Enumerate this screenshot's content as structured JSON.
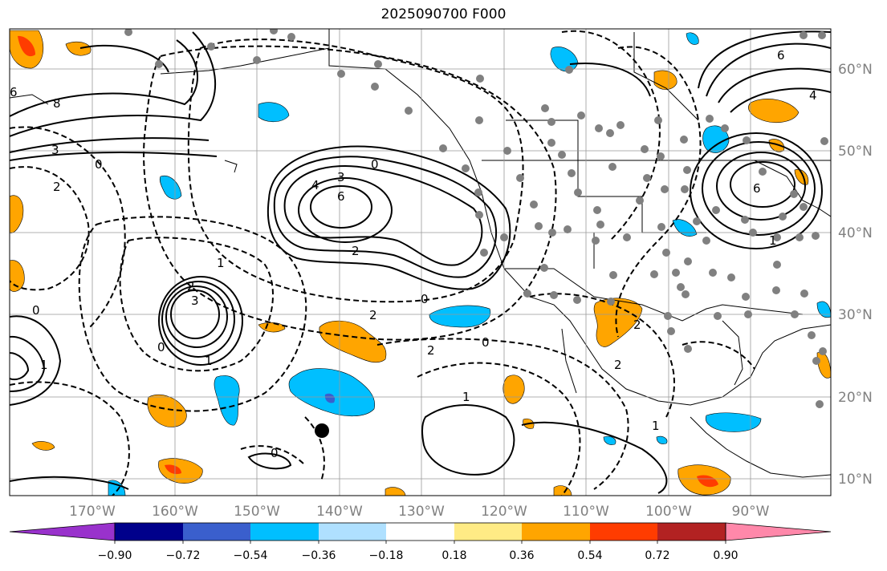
{
  "title": "2025090700 F000",
  "map": {
    "x_ticks": [
      "170°W",
      "160°W",
      "150°W",
      "140°W",
      "130°W",
      "120°W",
      "110°W",
      "100°W",
      "90°W"
    ],
    "y_ticks": [
      "60°N",
      "50°N",
      "40°N",
      "30°N",
      "20°N",
      "10°N"
    ],
    "grid": true
  },
  "colorbar": {
    "orientation": "horizontal",
    "extend": "both",
    "labels": [
      "−0.90",
      "−0.72",
      "−0.54",
      "−0.36",
      "−0.18",
      "0.18",
      "0.36",
      "0.54",
      "0.72",
      "0.90"
    ],
    "colors": [
      "#9932cc",
      "#00008b",
      "#3a5fcd",
      "#00bfff",
      "#afe0ff",
      "#ffffff",
      "#ffeb85",
      "#ffa500",
      "#ff3c00",
      "#b22222",
      "#ff88aa"
    ]
  },
  "contour_labels": [
    "6",
    "3",
    "2",
    "0",
    "4",
    "6",
    "3",
    "2",
    "1",
    "0",
    "2",
    "3",
    "1",
    "0",
    "2",
    "0",
    "1",
    "2",
    "1",
    "0",
    "1",
    "4",
    "6",
    "1",
    "2",
    "0",
    "2",
    "0",
    "6",
    "8"
  ],
  "marker": {
    "label": "",
    "color": "#000000"
  }
}
